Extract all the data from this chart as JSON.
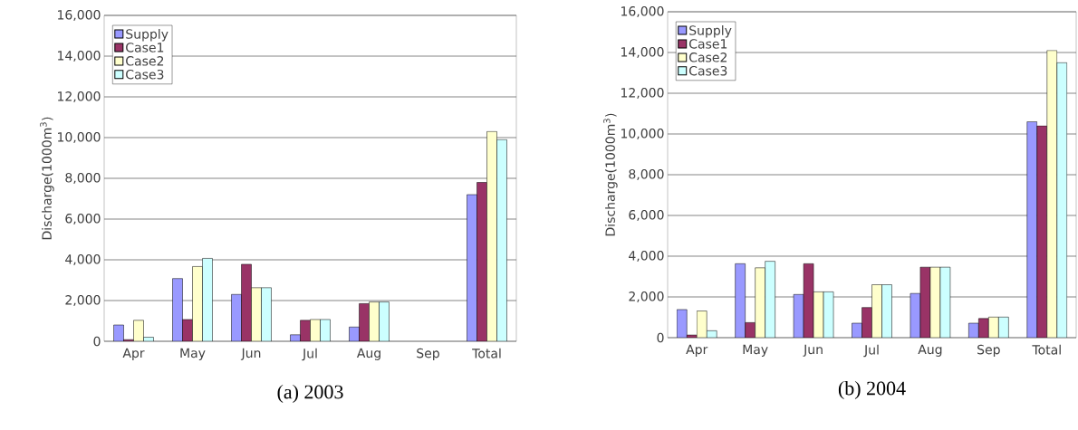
{
  "chart_data": [
    {
      "type": "bar",
      "title": "(a) 2003",
      "ylabel": "Discharge(1000m$^{3}$)",
      "categories": [
        "Apr",
        "May",
        "Jun",
        "Jul",
        "Aug",
        "Sep",
        "Total"
      ],
      "series": [
        {
          "name": "Supply",
          "color": "#9999ff",
          "values": [
            800,
            3080,
            2300,
            320,
            700,
            null,
            7200
          ]
        },
        {
          "name": "Case1",
          "color": "#993366",
          "values": [
            80,
            1070,
            3780,
            1030,
            1850,
            null,
            7800
          ]
        },
        {
          "name": "Case2",
          "color": "#ffffcc",
          "values": [
            1030,
            3670,
            2630,
            1070,
            1930,
            null,
            10300
          ]
        },
        {
          "name": "Case3",
          "color": "#ccffff",
          "values": [
            200,
            4070,
            2630,
            1070,
            1930,
            null,
            9900
          ]
        }
      ],
      "ylim": [
        0,
        16000
      ],
      "yticks": [
        {
          "value": 0,
          "label": "0"
        },
        {
          "value": 2000,
          "label": "2,000"
        },
        {
          "value": 4000,
          "label": "4,000"
        },
        {
          "value": 6000,
          "label": "6,000"
        },
        {
          "value": 8000,
          "label": "8,000"
        },
        {
          "value": 10000,
          "label": "10,000"
        },
        {
          "value": 12000,
          "label": "12,000"
        },
        {
          "value": 14000,
          "label": "14,000"
        },
        {
          "value": 16000,
          "label": "16,000"
        }
      ],
      "grid": "y",
      "legend": "top left"
    },
    {
      "type": "bar",
      "title": "(b) 2004",
      "ylabel": "Discharge(1000m$^{3}$)",
      "categories": [
        "Apr",
        "May",
        "Jun",
        "Jul",
        "Aug",
        "Sep",
        "Total"
      ],
      "series": [
        {
          "name": "Supply",
          "color": "#9999ff",
          "values": [
            1380,
            3630,
            2120,
            710,
            2170,
            710,
            10600
          ]
        },
        {
          "name": "Case1",
          "color": "#993366",
          "values": [
            130,
            740,
            3630,
            1480,
            3460,
            940,
            10400
          ]
        },
        {
          "name": "Case2",
          "color": "#ffffcc",
          "values": [
            1310,
            3430,
            2250,
            2600,
            3460,
            1010,
            14100
          ]
        },
        {
          "name": "Case3",
          "color": "#ccffff",
          "values": [
            340,
            3750,
            2250,
            2600,
            3460,
            1010,
            13500
          ]
        }
      ],
      "ylim": [
        0,
        16000
      ],
      "yticks": [
        {
          "value": 0,
          "label": "0"
        },
        {
          "value": 2000,
          "label": "2,000"
        },
        {
          "value": 4000,
          "label": "4,000"
        },
        {
          "value": 6000,
          "label": "6,000"
        },
        {
          "value": 8000,
          "label": "8,000"
        },
        {
          "value": 10000,
          "label": "10,000"
        },
        {
          "value": 12000,
          "label": "12,000"
        },
        {
          "value": 14000,
          "label": "14,000"
        },
        {
          "value": 16000,
          "label": "16,000"
        }
      ],
      "grid": "y",
      "legend": "top left"
    }
  ]
}
